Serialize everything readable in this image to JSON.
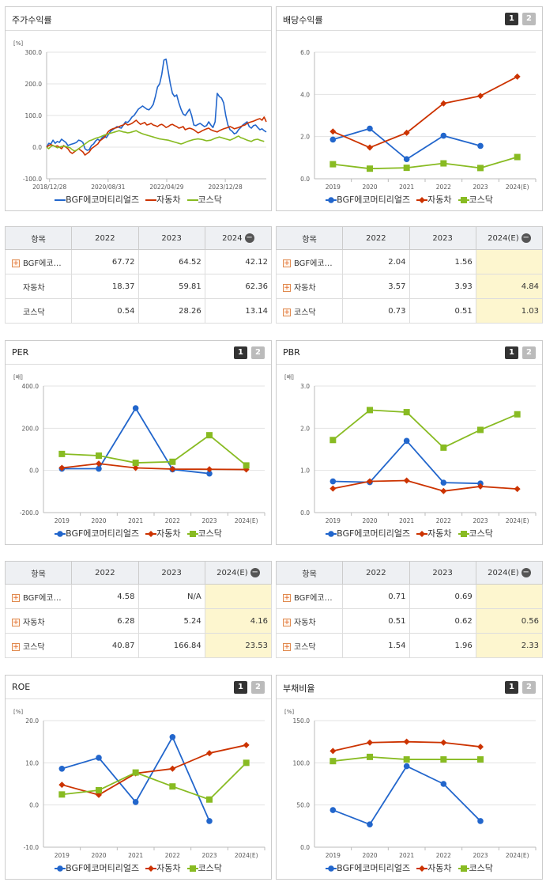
{
  "colors": {
    "bgf": "#2266cc",
    "auto": "#cc3300",
    "kosdaq": "#88bb22"
  },
  "legend": {
    "bgf": "BGF에코머티리얼즈",
    "auto": "자동차",
    "kosdaq": "코스닥"
  },
  "pages": {
    "p1": "1",
    "p2": "2"
  },
  "charts": {
    "stock": {
      "title": "주가수익률",
      "unit": "[%]",
      "type": "line",
      "ylim": [
        -100,
        300
      ],
      "yticks": [
        "300.0",
        "200.0",
        "100.0",
        "0.0",
        "-100.0"
      ],
      "xticks": [
        "2018/12/28",
        "2020/08/31",
        "2022/04/29",
        "2023/12/28"
      ],
      "series": [
        {
          "key": "bgf",
          "values": [
            0,
            12,
            10,
            22,
            12,
            18,
            15,
            25,
            20,
            15,
            5,
            8,
            10,
            12,
            15,
            22,
            20,
            15,
            -5,
            -10,
            -8,
            5,
            10,
            20,
            25,
            20,
            30,
            35,
            30,
            40,
            50,
            55,
            60,
            65,
            62,
            60,
            70,
            80,
            78,
            85,
            95,
            100,
            110,
            120,
            125,
            130,
            125,
            120,
            118,
            125,
            135,
            160,
            190,
            200,
            230,
            275,
            278,
            240,
            200,
            170,
            160,
            165,
            140,
            120,
            105,
            100,
            110,
            120,
            100,
            70,
            68,
            72,
            75,
            70,
            65,
            68,
            80,
            70,
            62,
            80,
            170,
            160,
            155,
            140,
            100,
            70,
            55,
            50,
            42,
            45,
            55,
            62,
            70,
            75,
            80,
            65,
            60,
            68,
            70,
            62,
            55,
            58,
            52,
            48
          ]
        },
        {
          "key": "auto",
          "values": [
            0,
            5,
            8,
            5,
            2,
            4,
            0,
            -5,
            5,
            0,
            -5,
            -15,
            -20,
            -15,
            -10,
            -5,
            -10,
            -15,
            -25,
            -20,
            -15,
            -5,
            0,
            5,
            10,
            20,
            25,
            30,
            40,
            50,
            55,
            58,
            60,
            62,
            65,
            68,
            70,
            75,
            70,
            72,
            75,
            80,
            85,
            78,
            72,
            75,
            78,
            70,
            72,
            75,
            70,
            68,
            65,
            70,
            72,
            68,
            62,
            65,
            70,
            72,
            68,
            65,
            60,
            62,
            65,
            55,
            58,
            60,
            58,
            55,
            50,
            45,
            48,
            52,
            55,
            58,
            60,
            55,
            52,
            50,
            48,
            52,
            55,
            58,
            60,
            62,
            65,
            62,
            58,
            60,
            62,
            65,
            68,
            70,
            75,
            78,
            80,
            82,
            85,
            88,
            90,
            85,
            95,
            80
          ]
        },
        {
          "key": "kosdaq",
          "values": [
            0,
            -5,
            2,
            5,
            2,
            -2,
            0,
            2,
            3,
            2,
            0,
            -2,
            -8,
            -12,
            -10,
            -5,
            0,
            5,
            10,
            15,
            20,
            22,
            25,
            28,
            30,
            32,
            35,
            38,
            40,
            42,
            44,
            46,
            48,
            50,
            52,
            50,
            48,
            47,
            45,
            46,
            48,
            50,
            52,
            48,
            45,
            42,
            40,
            38,
            36,
            34,
            32,
            30,
            28,
            26,
            25,
            24,
            23,
            22,
            20,
            18,
            16,
            14,
            12,
            10,
            12,
            15,
            18,
            20,
            22,
            24,
            25,
            26,
            25,
            24,
            22,
            20,
            21,
            22,
            25,
            28,
            30,
            32,
            30,
            28,
            26,
            24,
            22,
            25,
            28,
            32,
            35,
            30,
            28,
            25,
            22,
            20,
            18,
            22,
            24,
            25,
            22,
            20,
            18
          ]
        }
      ]
    },
    "div": {
      "title": "배당수익률",
      "unit": "",
      "type": "line",
      "ylim": [
        0,
        6
      ],
      "yticks": [
        "6.0",
        "4.0",
        "2.0",
        "0.0"
      ],
      "categories": [
        "2019",
        "2020",
        "2021",
        "2022",
        "2023",
        "2024(E)"
      ],
      "series": [
        {
          "key": "bgf",
          "values": [
            1.86,
            2.38,
            0.93,
            2.04,
            1.56,
            null
          ]
        },
        {
          "key": "auto",
          "values": [
            2.24,
            1.48,
            2.18,
            3.57,
            3.93,
            4.84
          ]
        },
        {
          "key": "kosdaq",
          "values": [
            0.69,
            0.48,
            0.52,
            0.73,
            0.51,
            1.03
          ]
        }
      ]
    },
    "per": {
      "title": "PER",
      "unit": "[배]",
      "type": "line",
      "ylim": [
        -200,
        400
      ],
      "yticks": [
        "400.0",
        "200.0",
        "0.0",
        "-200.0"
      ],
      "categories": [
        "2019",
        "2020",
        "2021",
        "2022",
        "2023",
        "2024(E)"
      ],
      "series": [
        {
          "key": "bgf",
          "values": [
            8,
            8,
            295,
            4.58,
            -15,
            null
          ]
        },
        {
          "key": "auto",
          "values": [
            12,
            32,
            12,
            6.28,
            5.24,
            4.16
          ]
        },
        {
          "key": "kosdaq",
          "values": [
            78,
            70,
            36,
            40.87,
            166.84,
            23.53
          ]
        }
      ]
    },
    "pbr": {
      "title": "PBR",
      "unit": "[배]",
      "type": "line",
      "ylim": [
        0,
        3
      ],
      "yticks": [
        "3.0",
        "2.0",
        "1.0",
        "0.0"
      ],
      "categories": [
        "2019",
        "2020",
        "2021",
        "2022",
        "2023",
        "2024(E)"
      ],
      "series": [
        {
          "key": "bgf",
          "values": [
            0.74,
            0.72,
            1.7,
            0.71,
            0.69,
            null
          ]
        },
        {
          "key": "auto",
          "values": [
            0.57,
            0.74,
            0.76,
            0.51,
            0.62,
            0.56
          ]
        },
        {
          "key": "kosdaq",
          "values": [
            1.72,
            2.43,
            2.38,
            1.54,
            1.96,
            2.33
          ]
        }
      ]
    },
    "roe": {
      "title": "ROE",
      "unit": "[%]",
      "type": "line",
      "ylim": [
        -10,
        20
      ],
      "yticks": [
        "20.0",
        "10.0",
        "0.0",
        "-10.0"
      ],
      "categories": [
        "2019",
        "2020",
        "2021",
        "2022",
        "2023",
        "2024(E)"
      ],
      "series": [
        {
          "key": "bgf",
          "values": [
            8.6,
            11.2,
            0.7,
            16.1,
            -3.8,
            null
          ]
        },
        {
          "key": "auto",
          "values": [
            4.8,
            2.4,
            7.5,
            8.6,
            12.3,
            14.2
          ]
        },
        {
          "key": "kosdaq",
          "values": [
            2.5,
            3.5,
            7.7,
            4.4,
            1.3,
            10.0
          ]
        }
      ]
    },
    "debt": {
      "title": "부채비율",
      "unit": "[%]",
      "type": "line",
      "ylim": [
        0,
        150
      ],
      "yticks": [
        "150.0",
        "100.0",
        "50.0",
        "0.0"
      ],
      "categories": [
        "2019",
        "2020",
        "2021",
        "2022",
        "2023",
        "2024(E)"
      ],
      "series": [
        {
          "key": "bgf",
          "values": [
            44,
            27,
            96,
            75,
            31,
            null
          ]
        },
        {
          "key": "auto",
          "values": [
            114,
            124,
            125,
            124,
            119,
            null
          ]
        },
        {
          "key": "kosdaq",
          "values": [
            102,
            107,
            104,
            104,
            104,
            null
          ]
        }
      ]
    }
  },
  "tables": {
    "stock": {
      "header": [
        "항목",
        "2022",
        "2023",
        "2024"
      ],
      "icon": "minus-circle-icon",
      "rows": [
        {
          "name": "BGF에코…",
          "plus": true,
          "cells": [
            "67.72",
            "64.52",
            "42.12"
          ]
        },
        {
          "name": "자동차",
          "plus": false,
          "cells": [
            "18.37",
            "59.81",
            "62.36"
          ]
        },
        {
          "name": "코스닥",
          "plus": false,
          "cells": [
            "0.54",
            "28.26",
            "13.14"
          ]
        }
      ]
    },
    "div": {
      "header": [
        "항목",
        "2022",
        "2023",
        "2024(E)"
      ],
      "icon": "minus-circle-icon",
      "rows": [
        {
          "name": "BGF에코…",
          "plus": true,
          "cells": [
            "2.04",
            "1.56",
            ""
          ]
        },
        {
          "name": "자동차",
          "plus": true,
          "cells": [
            "3.57",
            "3.93",
            "4.84"
          ]
        },
        {
          "name": "코스닥",
          "plus": true,
          "cells": [
            "0.73",
            "0.51",
            "1.03"
          ]
        }
      ]
    },
    "per": {
      "header": [
        "항목",
        "2022",
        "2023",
        "2024(E)"
      ],
      "icon": "minus-circle-icon",
      "rows": [
        {
          "name": "BGF에코…",
          "plus": true,
          "cells": [
            "4.58",
            "N/A",
            ""
          ]
        },
        {
          "name": "자동차",
          "plus": true,
          "cells": [
            "6.28",
            "5.24",
            "4.16"
          ]
        },
        {
          "name": "코스닥",
          "plus": true,
          "cells": [
            "40.87",
            "166.84",
            "23.53"
          ]
        }
      ]
    },
    "pbr": {
      "header": [
        "항목",
        "2022",
        "2023",
        "2024(E)"
      ],
      "icon": "minus-circle-icon",
      "rows": [
        {
          "name": "BGF에코…",
          "plus": true,
          "cells": [
            "0.71",
            "0.69",
            ""
          ]
        },
        {
          "name": "자동차",
          "plus": true,
          "cells": [
            "0.51",
            "0.62",
            "0.56"
          ]
        },
        {
          "name": "코스닥",
          "plus": true,
          "cells": [
            "1.54",
            "1.96",
            "2.33"
          ]
        }
      ]
    }
  }
}
